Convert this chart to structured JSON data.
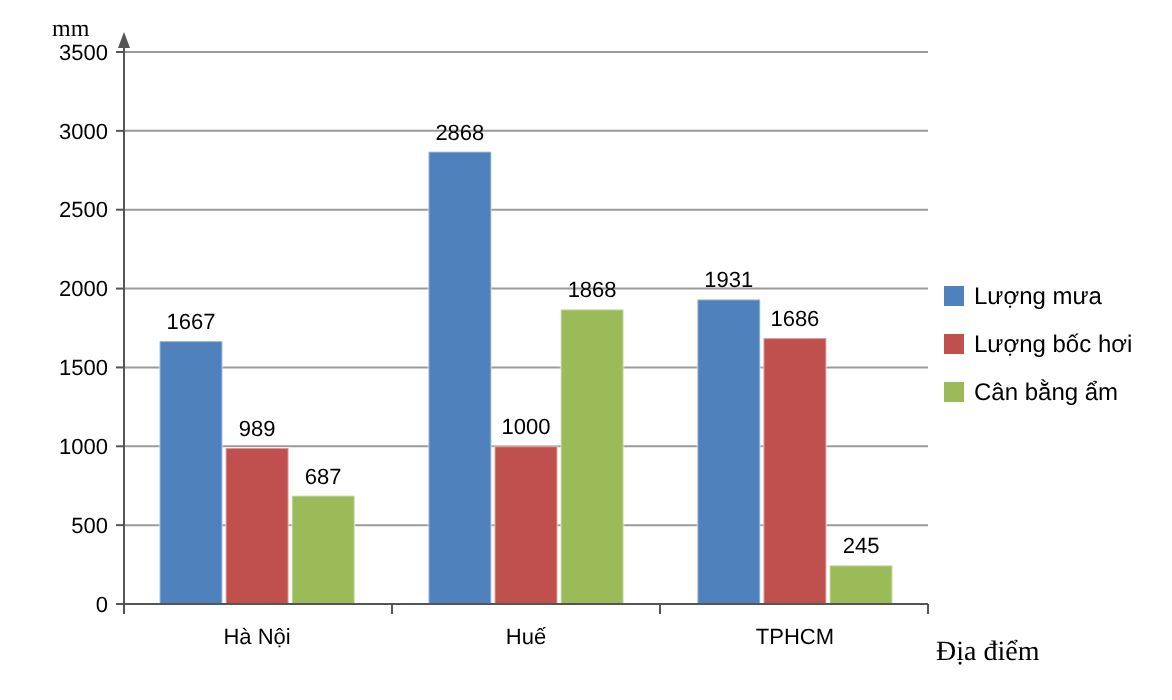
{
  "chart_data": {
    "type": "bar",
    "ylabel": "mm",
    "xlabel": "Địa điểm",
    "categories": [
      "Hà Nội",
      "Huế",
      "TPHCM"
    ],
    "series": [
      {
        "name": "Lượng mưa",
        "color": "#4f81bd",
        "values": [
          1667,
          2868,
          1931
        ]
      },
      {
        "name": "Lượng bốc hơi",
        "color": "#c0504d",
        "values": [
          989,
          1000,
          1686
        ]
      },
      {
        "name": "Cân bằng ẩm",
        "color": "#9bbb59",
        "values": [
          687,
          1868,
          245
        ]
      }
    ],
    "ylim": [
      0,
      3500
    ],
    "yticks": [
      0,
      500,
      1000,
      1500,
      2000,
      2500,
      3000,
      3500
    ],
    "grid": "y",
    "legend": "right",
    "data_labels": true
  }
}
